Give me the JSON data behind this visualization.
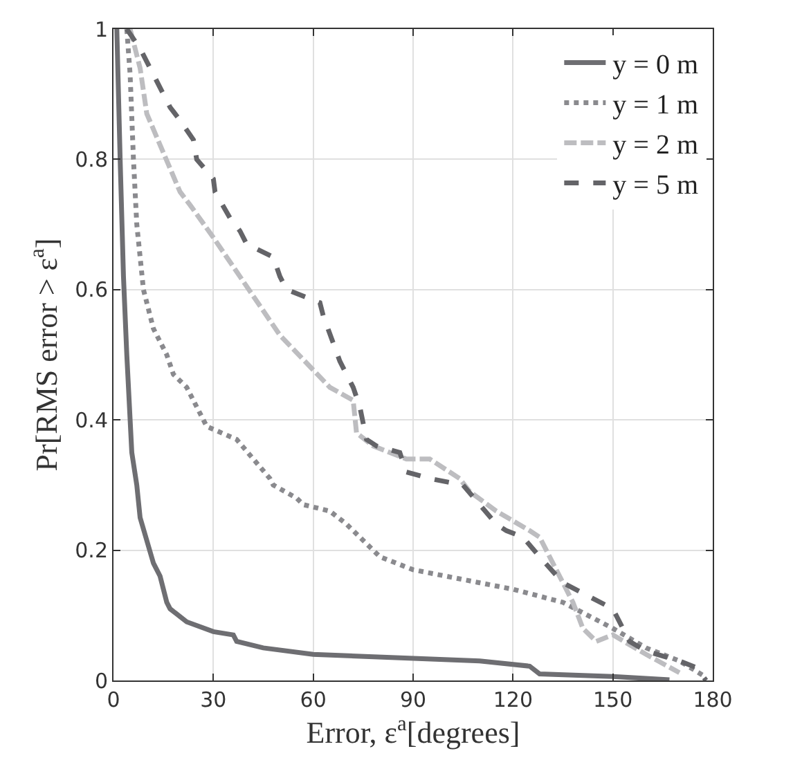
{
  "chart_data": {
    "type": "line",
    "xlabel": "Error, ε$^{a}$[degrees]",
    "ylabel": "Pr[RMS error > ε$^{a}$]",
    "xlim": [
      0,
      180
    ],
    "xticks": [
      0,
      30,
      60,
      90,
      120,
      150,
      180
    ],
    "ylim": [
      0,
      1
    ],
    "yticks": [
      0,
      0.2,
      0.4,
      0.6,
      0.8,
      1
    ],
    "grid": true,
    "legend": "top right",
    "marker": "none",
    "series": [
      {
        "name": "y = 0 m",
        "color": "#6e6e72",
        "line_style": "solid",
        "x": [
          1,
          2,
          3,
          4,
          5.5,
          7,
          8,
          12,
          14,
          16,
          17,
          22,
          30,
          36,
          37,
          45,
          60,
          110,
          125,
          128,
          150,
          167
        ],
        "values": [
          1,
          0.8,
          0.62,
          0.5,
          0.35,
          0.3,
          0.25,
          0.18,
          0.16,
          0.12,
          0.11,
          0.09,
          0.075,
          0.07,
          0.06,
          0.05,
          0.04,
          0.03,
          0.022,
          0.01,
          0.006,
          0.001
        ]
      },
      {
        "name": "y = 1 m",
        "color": "#8a8a8e",
        "line_style": "dotted",
        "x": [
          4,
          5,
          6,
          7,
          9,
          12,
          16,
          18,
          22,
          28,
          37,
          47,
          48,
          55,
          57,
          65,
          70,
          80,
          90,
          110,
          120,
          135,
          150,
          160,
          170,
          178
        ],
        "values": [
          1,
          0.93,
          0.8,
          0.7,
          0.6,
          0.54,
          0.5,
          0.47,
          0.45,
          0.39,
          0.37,
          0.31,
          0.3,
          0.28,
          0.27,
          0.26,
          0.24,
          0.19,
          0.17,
          0.15,
          0.14,
          0.12,
          0.08,
          0.05,
          0.03,
          0.005
        ]
      },
      {
        "name": "y = 2 m",
        "color": "#bdbdc0",
        "line_style": "dashed",
        "x": [
          5,
          8,
          10,
          15,
          20,
          23,
          30,
          42,
          50,
          65,
          72,
          73,
          78,
          88,
          95,
          104,
          107,
          115,
          125,
          128,
          138,
          141,
          145,
          150,
          160,
          170
        ],
        "values": [
          1,
          0.94,
          0.87,
          0.81,
          0.75,
          0.73,
          0.68,
          0.59,
          0.53,
          0.45,
          0.43,
          0.38,
          0.36,
          0.34,
          0.34,
          0.31,
          0.29,
          0.26,
          0.23,
          0.22,
          0.12,
          0.08,
          0.06,
          0.07,
          0.04,
          0.012
        ]
      },
      {
        "name": "y = 5 m",
        "color": "#646468",
        "line_style": "dashed",
        "x": [
          4,
          8,
          10,
          15,
          17,
          20,
          24,
          25,
          30,
          30.5,
          35,
          38,
          40,
          48,
          50,
          52,
          62,
          63,
          68,
          72,
          74,
          76,
          79,
          86,
          88,
          95,
          105,
          110,
          115,
          118,
          123,
          128,
          135,
          150,
          153,
          155,
          160,
          170,
          175,
          178
        ],
        "values": [
          1,
          0.97,
          0.95,
          0.9,
          0.88,
          0.86,
          0.83,
          0.8,
          0.77,
          0.75,
          0.71,
          0.69,
          0.67,
          0.65,
          0.62,
          0.6,
          0.58,
          0.56,
          0.49,
          0.45,
          0.42,
          0.37,
          0.36,
          0.35,
          0.32,
          0.31,
          0.3,
          0.27,
          0.24,
          0.23,
          0.22,
          0.19,
          0.15,
          0.11,
          0.08,
          0.06,
          0.045,
          0.03,
          0.02,
          0
        ]
      }
    ]
  }
}
